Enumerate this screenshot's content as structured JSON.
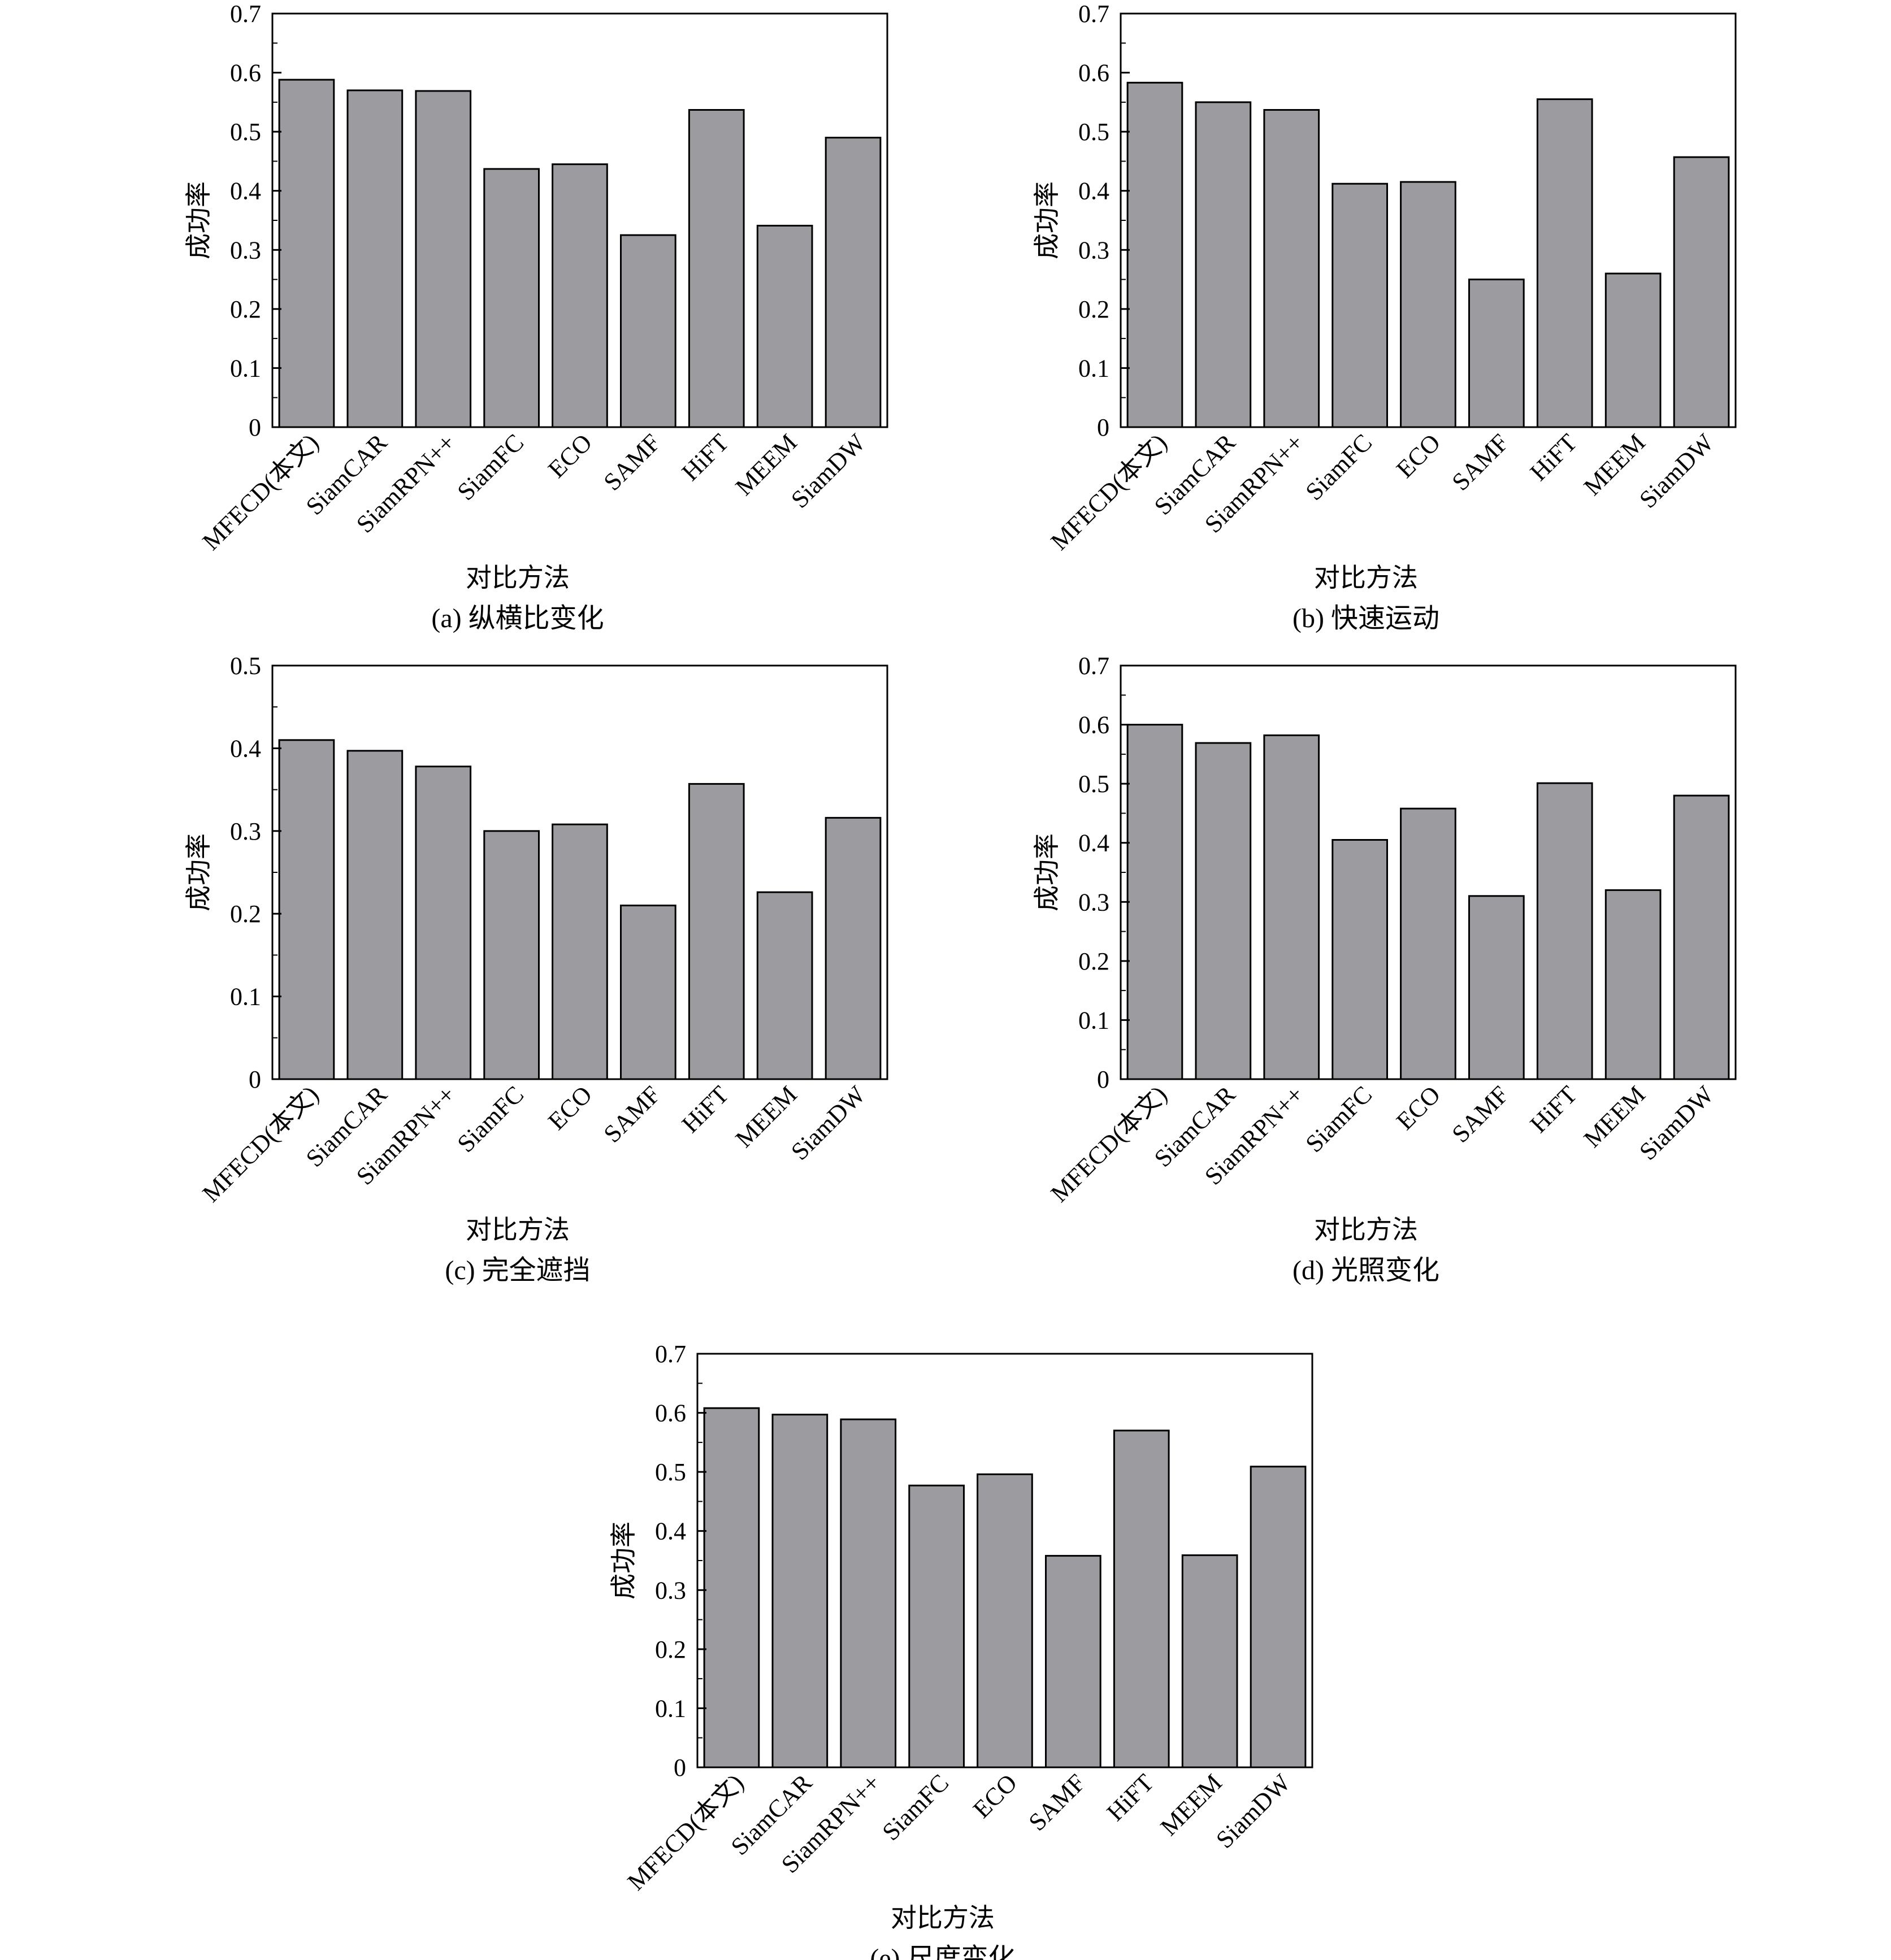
{
  "chart_data": [
    {
      "type": "bar",
      "caption": "(a)  纵横比变化",
      "xlabel": "对比方法",
      "ylabel": "成功率",
      "ylim": [
        0,
        0.7
      ],
      "yticks": [
        "0",
        "0.1",
        "0.2",
        "0.3",
        "0.4",
        "0.5",
        "0.6",
        "0.7"
      ],
      "categories": [
        "MFECD(本文)",
        "SiamCAR",
        "SiamRPN++",
        "SiamFC",
        "ECO",
        "SAMF",
        "HiFT",
        "MEEM",
        "SiamDW"
      ],
      "values": [
        0.588,
        0.57,
        0.569,
        0.437,
        0.445,
        0.325,
        0.537,
        0.341,
        0.49
      ],
      "bar_color": "#9b9ba0",
      "grid": false
    },
    {
      "type": "bar",
      "caption": "(b)  快速运动",
      "xlabel": "对比方法",
      "ylabel": "成功率",
      "ylim": [
        0,
        0.7
      ],
      "yticks": [
        "0",
        "0.1",
        "0.2",
        "0.3",
        "0.4",
        "0.5",
        "0.6",
        "0.7"
      ],
      "categories": [
        "MFECD(本文)",
        "SiamCAR",
        "SiamRPN++",
        "SiamFC",
        "ECO",
        "SAMF",
        "HiFT",
        "MEEM",
        "SiamDW"
      ],
      "values": [
        0.583,
        0.55,
        0.537,
        0.412,
        0.415,
        0.25,
        0.555,
        0.26,
        0.457
      ],
      "bar_color": "#9b9ba0",
      "grid": false
    },
    {
      "type": "bar",
      "caption": "(c)  完全遮挡",
      "xlabel": "对比方法",
      "ylabel": "成功率",
      "ylim": [
        0,
        0.5
      ],
      "yticks": [
        "0",
        "0.1",
        "0.2",
        "0.3",
        "0.4",
        "0.5"
      ],
      "categories": [
        "MFECD(本文)",
        "SiamCAR",
        "SiamRPN++",
        "SiamFC",
        "ECO",
        "SAMF",
        "HiFT",
        "MEEM",
        "SiamDW"
      ],
      "values": [
        0.41,
        0.397,
        0.378,
        0.3,
        0.308,
        0.21,
        0.357,
        0.226,
        0.316
      ],
      "bar_color": "#9b9ba0",
      "grid": false
    },
    {
      "type": "bar",
      "caption": "(d)  光照变化",
      "xlabel": "对比方法",
      "ylabel": "成功率",
      "ylim": [
        0,
        0.7
      ],
      "yticks": [
        "0",
        "0.1",
        "0.2",
        "0.3",
        "0.4",
        "0.5",
        "0.6",
        "0.7"
      ],
      "categories": [
        "MFECD(本文)",
        "SiamCAR",
        "SiamRPN++",
        "SiamFC",
        "ECO",
        "SAMF",
        "HiFT",
        "MEEM",
        "SiamDW"
      ],
      "values": [
        0.6,
        0.569,
        0.582,
        0.405,
        0.458,
        0.31,
        0.501,
        0.32,
        0.48
      ],
      "bar_color": "#9b9ba0",
      "grid": false
    },
    {
      "type": "bar",
      "caption": "(e)  尺度变化",
      "xlabel": "对比方法",
      "ylabel": "成功率",
      "ylim": [
        0,
        0.7
      ],
      "yticks": [
        "0",
        "0.1",
        "0.2",
        "0.3",
        "0.4",
        "0.5",
        "0.6",
        "0.7"
      ],
      "categories": [
        "MFECD(本文)",
        "SiamCAR",
        "SiamRPN++",
        "SiamFC",
        "ECO",
        "SAMF",
        "HiFT",
        "MEEM",
        "SiamDW"
      ],
      "values": [
        0.608,
        0.597,
        0.589,
        0.477,
        0.496,
        0.358,
        0.57,
        0.359,
        0.509
      ],
      "bar_color": "#9b9ba0",
      "grid": false
    }
  ]
}
